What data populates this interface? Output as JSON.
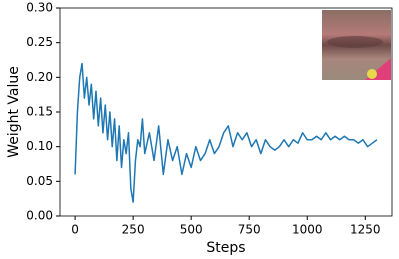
{
  "chart_data": {
    "type": "line",
    "xlabel": "Steps",
    "ylabel": "Weight Value",
    "x": [
      0,
      10,
      20,
      30,
      40,
      50,
      60,
      70,
      80,
      90,
      100,
      110,
      120,
      130,
      140,
      150,
      160,
      170,
      180,
      190,
      200,
      210,
      220,
      230,
      240,
      250,
      260,
      270,
      280,
      290,
      300,
      320,
      340,
      360,
      380,
      400,
      420,
      440,
      460,
      480,
      500,
      520,
      540,
      560,
      580,
      600,
      620,
      640,
      660,
      680,
      700,
      720,
      740,
      760,
      780,
      800,
      820,
      840,
      860,
      880,
      900,
      920,
      940,
      960,
      980,
      1000,
      1020,
      1040,
      1060,
      1080,
      1100,
      1120,
      1140,
      1160,
      1180,
      1200,
      1220,
      1240,
      1260,
      1280,
      1300
    ],
    "values": [
      0.06,
      0.15,
      0.2,
      0.22,
      0.17,
      0.2,
      0.16,
      0.19,
      0.14,
      0.18,
      0.13,
      0.17,
      0.12,
      0.16,
      0.11,
      0.15,
      0.1,
      0.14,
      0.08,
      0.13,
      0.07,
      0.11,
      0.09,
      0.12,
      0.04,
      0.02,
      0.08,
      0.11,
      0.1,
      0.14,
      0.09,
      0.12,
      0.08,
      0.13,
      0.06,
      0.11,
      0.08,
      0.1,
      0.06,
      0.09,
      0.07,
      0.1,
      0.08,
      0.09,
      0.11,
      0.09,
      0.1,
      0.12,
      0.13,
      0.1,
      0.12,
      0.11,
      0.12,
      0.1,
      0.11,
      0.09,
      0.11,
      0.1,
      0.095,
      0.1,
      0.11,
      0.1,
      0.11,
      0.105,
      0.12,
      0.11,
      0.11,
      0.115,
      0.11,
      0.12,
      0.11,
      0.115,
      0.11,
      0.115,
      0.11,
      0.11,
      0.105,
      0.11,
      0.1,
      0.105,
      0.11
    ],
    "color": "#1f77b4",
    "xlim": [
      -65,
      1365
    ],
    "xticks": [
      0,
      250,
      500,
      750,
      1000,
      1250
    ],
    "ylim": [
      0,
      0.3
    ],
    "yticks": [
      {
        "value": 0,
        "label": "0.00"
      },
      {
        "value": 0.05,
        "label": "0.05"
      },
      {
        "value": 0.1,
        "label": "0.10"
      },
      {
        "value": 0.15,
        "label": "0.15"
      },
      {
        "value": 0.2,
        "label": "0.20"
      },
      {
        "value": 0.25,
        "label": "0.25"
      },
      {
        "value": 0.3,
        "label": "0.30"
      }
    ]
  }
}
